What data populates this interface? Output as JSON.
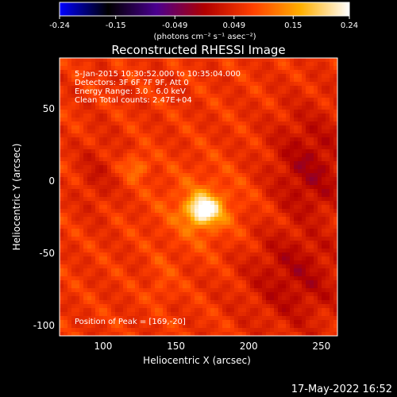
{
  "chart_data": {
    "type": "heatmap",
    "title": "Reconstructed RHESSI Image",
    "xlabel": "Heliocentric X (arcsec)",
    "ylabel": "Heliocentric Y (arcsec)",
    "xlim": [
      70,
      261
    ],
    "ylim": [
      -107,
      85
    ],
    "x_ticks": [
      100,
      150,
      200,
      250
    ],
    "y_ticks": [
      50,
      0,
      -50,
      -100
    ],
    "x_tick_labels": [
      "100",
      "150",
      "200",
      "250"
    ],
    "y_tick_labels": [
      "50",
      "0",
      "-50",
      "-100"
    ],
    "colorbar": {
      "range": [
        -0.24,
        0.24
      ],
      "ticks": [
        -0.24,
        -0.147,
        -0.049,
        0.049,
        0.147,
        0.24
      ],
      "tick_labels": [
        "-0.24",
        "-0.15",
        "-0.049",
        "0.049",
        "0.15",
        "0.24"
      ],
      "unit_label": "(photons cm⁻² s⁻¹ asec⁻²)",
      "colormap": [
        "#0000ff",
        "#000000",
        "#4b0091",
        "#b00000",
        "#ff4000",
        "#ffb000",
        "#ffffff"
      ]
    },
    "annotations": [
      " 5-Jan-2015 10:30:52.000 to 10:35:04.000",
      "Detectors: 3F 6F 7F 9F, Att 0",
      "Energy Range: 3.0 - 6.0 keV",
      "Clean     Total counts: 2.47E+04"
    ],
    "peak_label": "Position of Peak = [169,-20]",
    "peak": {
      "x": 169,
      "y": -20,
      "value": 0.24
    },
    "secondary_sources": [
      {
        "x": 123,
        "y": 10,
        "value": 0.12
      },
      {
        "x": 140,
        "y": -75,
        "value": 0.09
      },
      {
        "x": 140,
        "y": -60,
        "value": 0.08
      }
    ]
  },
  "footer": {
    "date": "17-May-2022 16:52"
  }
}
